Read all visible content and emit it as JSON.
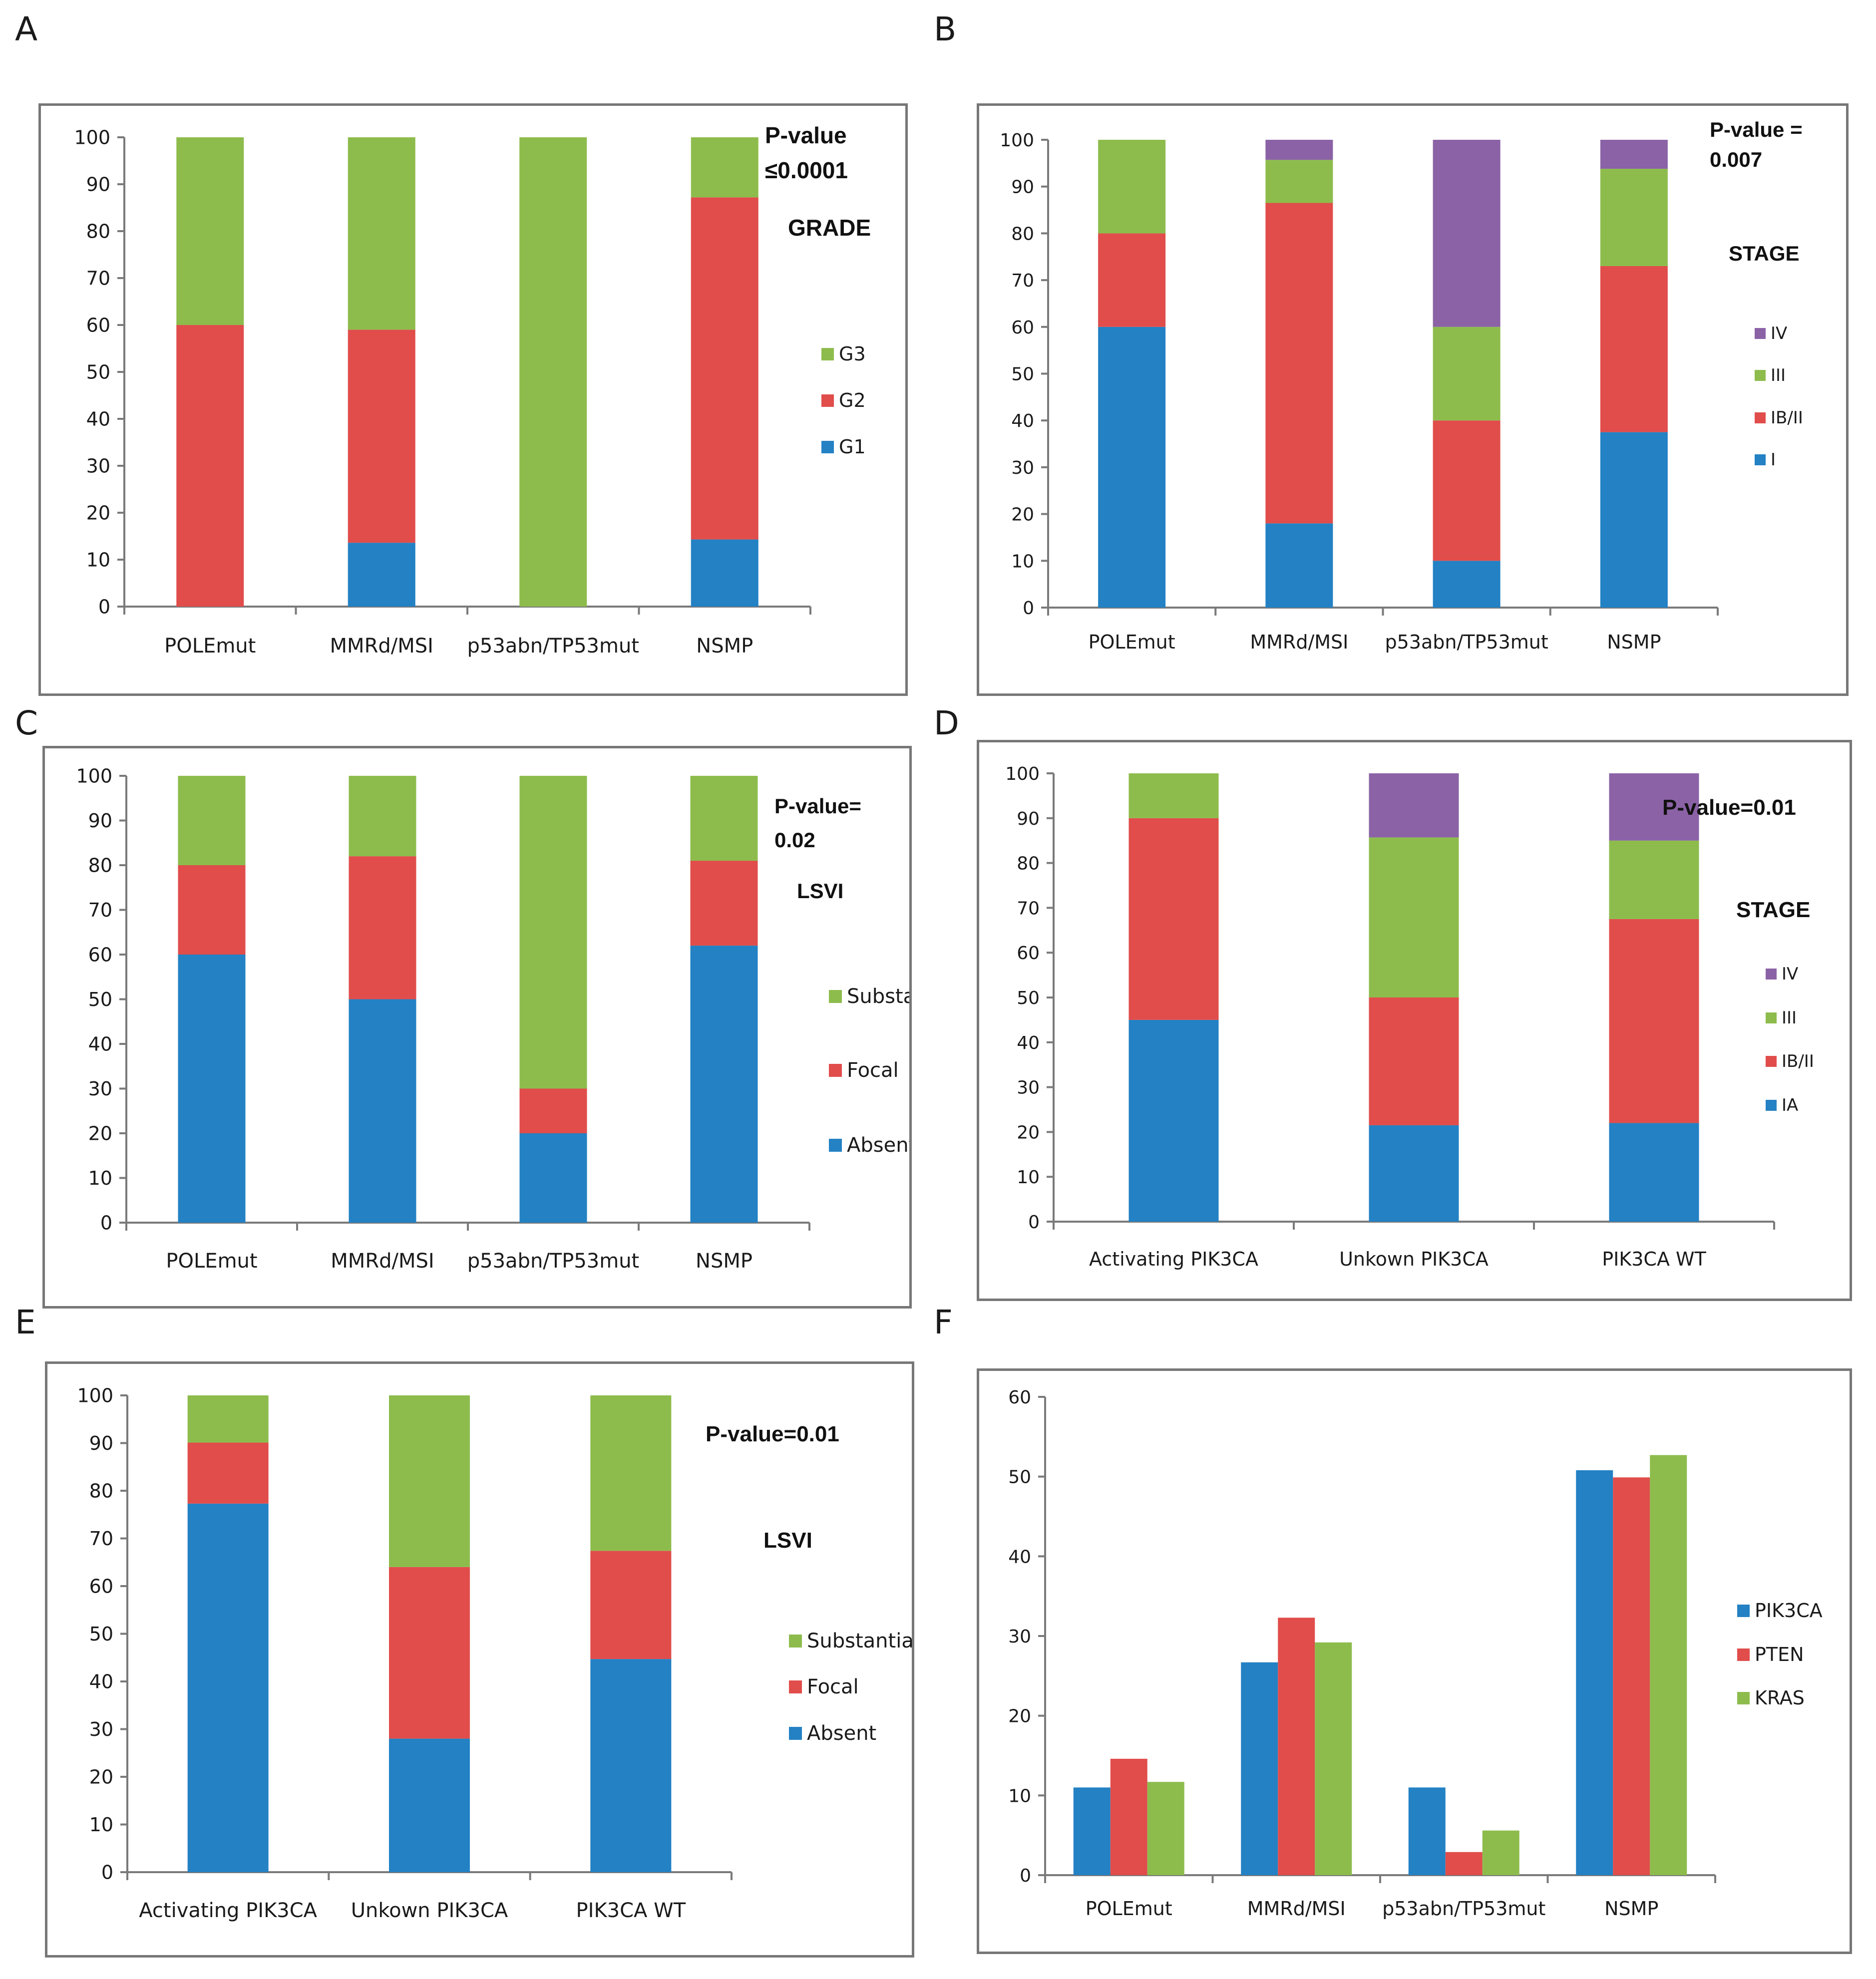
{
  "panel_letters": [
    "A",
    "B",
    "C",
    "D",
    "E",
    "F"
  ],
  "colors": {
    "blue": "#2381c4",
    "red": "#e04d4b",
    "green": "#8dbc4c",
    "purple": "#8b62a6",
    "axis": "#7a7a7a",
    "frame": "#777777"
  },
  "chart_data": [
    {
      "panel": "A",
      "type": "bar",
      "stacked": true,
      "categories": [
        "POLEmut",
        "MMRd/MSI",
        "p53abn/TP53mut",
        "NSMP"
      ],
      "series": [
        {
          "name": "G1",
          "color": "blue",
          "values": [
            0,
            13.6,
            0,
            14.3
          ]
        },
        {
          "name": "G2",
          "color": "red",
          "values": [
            60,
            45.4,
            0,
            72.9
          ]
        },
        {
          "name": "G3",
          "color": "green",
          "values": [
            40,
            41.0,
            100,
            12.8
          ]
        }
      ],
      "ylim": [
        0,
        100
      ],
      "yticks": [
        "0",
        "10",
        "20",
        "30",
        "40",
        "50",
        "60",
        "70",
        "80",
        "90",
        "100"
      ],
      "annotation_lines": [
        "P-value",
        "≤0.0001"
      ],
      "legend_title": "GRADE",
      "legend": [
        "G3",
        "G2",
        "G1"
      ],
      "legend_position": "right"
    },
    {
      "panel": "B",
      "type": "bar",
      "stacked": true,
      "categories": [
        "POLEmut",
        "MMRd/MSI",
        "p53abn/TP53mut",
        "NSMP"
      ],
      "series": [
        {
          "name": "I",
          "color": "blue",
          "values": [
            60,
            18,
            10,
            37.5
          ]
        },
        {
          "name": "IB/II",
          "color": "red",
          "values": [
            20,
            68.5,
            30,
            35.5
          ]
        },
        {
          "name": "III",
          "color": "green",
          "values": [
            20,
            9.2,
            20,
            20.8
          ]
        },
        {
          "name": "IV",
          "color": "purple",
          "values": [
            0,
            4.3,
            40,
            6.2
          ]
        }
      ],
      "ylim": [
        0,
        100
      ],
      "yticks": [
        "0",
        "10",
        "20",
        "30",
        "40",
        "50",
        "60",
        "70",
        "80",
        "90",
        "100"
      ],
      "annotation_lines": [
        "P-value =",
        "0.007"
      ],
      "legend_title": "STAGE",
      "legend": [
        "IV",
        "III",
        "IB/II",
        "I"
      ],
      "legend_position": "right"
    },
    {
      "panel": "C",
      "type": "bar",
      "stacked": true,
      "categories": [
        "POLEmut",
        "MMRd/MSI",
        "p53abn/TP53mut",
        "NSMP"
      ],
      "series": [
        {
          "name": "Absent",
          "color": "blue",
          "values": [
            60,
            50,
            20,
            62
          ]
        },
        {
          "name": "Focal",
          "color": "red",
          "values": [
            20,
            32,
            10,
            19
          ]
        },
        {
          "name": "Substantial",
          "color": "green",
          "values": [
            20,
            18,
            70,
            19
          ]
        }
      ],
      "ylim": [
        0,
        100
      ],
      "yticks": [
        "0",
        "10",
        "20",
        "30",
        "40",
        "50",
        "60",
        "70",
        "80",
        "90",
        "100"
      ],
      "annotation_lines": [
        "P-value=",
        "0.02"
      ],
      "legend_title": "LSVI",
      "legend": [
        "Substantial",
        "Focal",
        "Absent"
      ],
      "legend_position": "right"
    },
    {
      "panel": "D",
      "type": "bar",
      "stacked": true,
      "categories": [
        "Activating PIK3CA",
        "Unkown PIK3CA",
        "PIK3CA WT"
      ],
      "series": [
        {
          "name": "IA",
          "color": "blue",
          "values": [
            45,
            21.5,
            22
          ]
        },
        {
          "name": "IB/II",
          "color": "red",
          "values": [
            45,
            28.5,
            45.5
          ]
        },
        {
          "name": "III",
          "color": "green",
          "values": [
            10,
            35.7,
            17.5
          ]
        },
        {
          "name": "IV",
          "color": "purple",
          "values": [
            0,
            14.3,
            15
          ]
        }
      ],
      "ylim": [
        0,
        100
      ],
      "yticks": [
        "0",
        "10",
        "20",
        "30",
        "40",
        "50",
        "60",
        "70",
        "80",
        "90",
        "100"
      ],
      "annotation_lines": [
        "P-value=0.01"
      ],
      "legend_title": "STAGE",
      "legend": [
        "IV",
        "III",
        "IB/II",
        "IA"
      ],
      "legend_position": "right"
    },
    {
      "panel": "E",
      "type": "bar",
      "stacked": true,
      "categories": [
        "Activating PIK3CA",
        "Unkown PIK3CA",
        "PIK3CA WT"
      ],
      "series": [
        {
          "name": "Absent",
          "color": "blue",
          "values": [
            77.3,
            28,
            44.7
          ]
        },
        {
          "name": "Focal",
          "color": "red",
          "values": [
            12.8,
            36,
            22.7
          ]
        },
        {
          "name": "Substantial",
          "color": "green",
          "values": [
            9.9,
            36,
            32.6
          ]
        }
      ],
      "ylim": [
        0,
        100
      ],
      "yticks": [
        "0",
        "10",
        "20",
        "30",
        "40",
        "50",
        "60",
        "70",
        "80",
        "90",
        "100"
      ],
      "annotation_lines": [
        "P-value=0.01"
      ],
      "legend_title": "LSVI",
      "legend": [
        "Substantial",
        "Focal",
        "Absent"
      ],
      "legend_position": "right"
    },
    {
      "panel": "F",
      "type": "bar",
      "stacked": false,
      "categories": [
        "POLEmut",
        "MMRd/MSI",
        "p53abn/TP53mut",
        "NSMP"
      ],
      "series": [
        {
          "name": "PIK3CA",
          "color": "blue",
          "values": [
            11,
            26.7,
            11,
            50.8
          ]
        },
        {
          "name": "PTEN",
          "color": "red",
          "values": [
            14.6,
            32.3,
            2.9,
            49.9
          ]
        },
        {
          "name": "KRAS",
          "color": "green",
          "values": [
            11.7,
            29.2,
            5.6,
            52.7
          ]
        }
      ],
      "ylim": [
        0,
        60
      ],
      "yticks": [
        "0",
        "10",
        "20",
        "30",
        "40",
        "50",
        "60"
      ],
      "annotation_lines": [],
      "legend_title": "",
      "legend": [
        "PIK3CA",
        "PTEN",
        "KRAS"
      ],
      "legend_position": "right"
    }
  ]
}
